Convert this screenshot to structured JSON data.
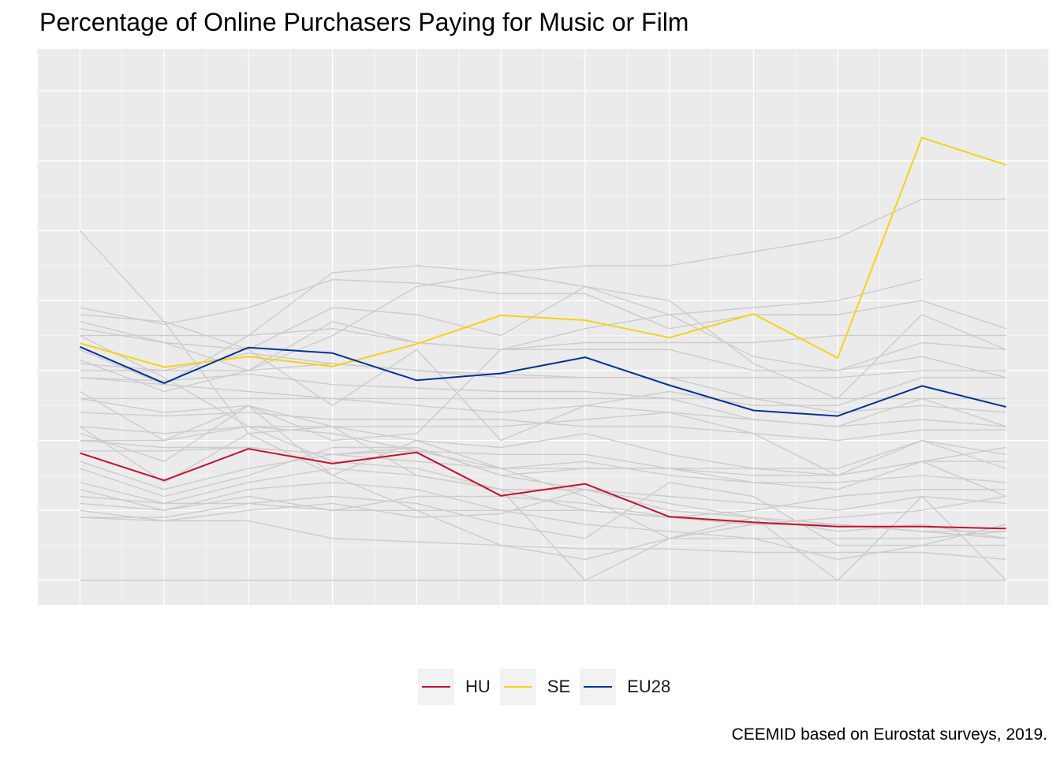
{
  "chart_data": {
    "type": "line",
    "title": "Percentage of Online Purchasers Paying for Music or Film",
    "caption": "CEEMID based on Eurostat surveys, 2019.",
    "x": [
      1,
      2,
      3,
      4,
      5,
      6,
      7,
      8,
      9,
      10,
      11,
      12
    ],
    "ylim": [
      -0.35,
      7.6
    ],
    "grid": true,
    "legend_position": "bottom",
    "highlight_series": [
      {
        "name": "HU",
        "color": "#c8102e",
        "values": [
          1.82,
          1.43,
          1.88,
          1.67,
          1.83,
          1.21,
          1.38,
          0.91,
          0.83,
          0.77,
          0.77,
          0.74
        ]
      },
      {
        "name": "SE",
        "color": "#f7d117",
        "values": [
          3.39,
          3.05,
          3.2,
          3.06,
          3.38,
          3.79,
          3.72,
          3.47,
          3.81,
          3.18,
          6.33,
          5.94
        ]
      },
      {
        "name": "EU28",
        "color": "#003399",
        "values": [
          3.34,
          2.82,
          3.33,
          3.25,
          2.86,
          2.96,
          3.19,
          2.79,
          2.43,
          2.35,
          2.78,
          2.48
        ]
      }
    ],
    "background_series_color": "#cccccc",
    "background_series": [
      [
        5.0,
        3.7,
        2.1,
        1.5,
        1.0,
        0.5,
        0.3,
        0.6,
        0.6,
        0.3,
        0.5,
        0.5
      ],
      [
        3.9,
        3.66,
        3.9,
        4.3,
        4.25,
        4.1,
        4.1,
        3.6,
        3.8,
        3.8,
        4.0,
        3.6
      ],
      [
        3.7,
        3.4,
        3.0,
        3.7,
        3.4,
        3.3,
        3.3,
        3.3,
        3.0,
        3.0,
        3.4,
        3.3
      ],
      [
        3.5,
        3.5,
        3.5,
        3.6,
        3.4,
        3.3,
        3.4,
        3.4,
        3.4,
        3.5,
        3.5,
        3.5
      ],
      [
        3.0,
        3.0,
        3.0,
        3.1,
        3.0,
        2.9,
        2.9,
        2.9,
        2.9,
        2.9,
        3.0,
        3.0
      ],
      [
        2.9,
        2.8,
        2.7,
        2.6,
        2.5,
        2.4,
        2.5,
        2.7,
        2.5,
        2.5,
        2.9,
        2.9
      ],
      [
        2.2,
        2.1,
        2.2,
        2.2,
        2.2,
        2.2,
        2.3,
        2.4,
        2.3,
        2.2,
        2.3,
        2.2
      ],
      [
        2.0,
        1.9,
        1.9,
        1.8,
        1.7,
        1.6,
        1.6,
        1.6,
        1.4,
        1.4,
        1.5,
        1.4
      ],
      [
        1.2,
        1.1,
        1.1,
        1.0,
        1.0,
        1.0,
        0.8,
        0.7,
        0.6,
        0.6,
        0.6,
        0.7
      ],
      [
        0.9,
        0.85,
        0.85,
        0.6,
        0.55,
        0.5,
        0.45,
        0.45,
        0.4,
        0.4,
        0.4,
        0.3
      ],
      [
        0.0,
        0.0,
        0.0,
        0.0,
        0.0,
        0.0,
        0.0,
        0.0,
        0.0,
        0.0,
        0.0,
        0.0
      ],
      [
        1.4,
        1.1,
        1.4,
        1.6,
        1.5,
        1.3,
        1.3,
        1.2,
        1.1,
        1.0,
        1.2,
        1.1
      ],
      [
        3.6,
        3.4,
        3.3,
        2.5,
        3.3,
        2.0,
        2.5,
        2.4,
        2.1,
        1.5,
        2.0,
        1.6
      ],
      [
        2.1,
        1.7,
        2.5,
        1.5,
        2.0,
        1.6,
        1.2,
        0.6,
        0.8,
        0.9,
        1.0,
        1.2
      ],
      [
        2.6,
        2.4,
        2.5,
        2.2,
        2.0,
        1.9,
        2.1,
        1.8,
        1.6,
        1.6,
        2.0,
        1.8
      ],
      [
        1.6,
        1.2,
        1.5,
        1.9,
        1.9,
        1.5,
        1.3,
        1.1,
        0.9,
        0.8,
        0.7,
        0.6
      ],
      [
        3.15,
        2.7,
        3.0,
        3.5,
        4.2,
        4.4,
        4.5,
        4.5,
        4.7,
        4.9,
        5.45,
        5.45
      ],
      [
        3.3,
        2.8,
        3.5,
        4.4,
        4.5,
        4.4,
        4.2,
        4.0,
        3.1,
        2.6,
        3.8,
        3.3
      ],
      [
        1.3,
        1.0,
        1.3,
        1.4,
        1.3,
        1.0,
        1.0,
        0.9,
        1.0,
        1.2,
        1.3,
        1.3
      ],
      [
        2.6,
        2.6,
        2.6,
        2.6,
        2.6,
        2.6,
        2.6,
        2.6,
        2.6,
        2.6,
        2.6,
        2.6
      ],
      [
        1.7,
        1.3,
        1.6,
        1.8,
        1.9,
        1.5,
        1.6,
        1.6,
        1.5,
        1.5,
        1.7,
        1.9
      ],
      [
        2.2,
        1.4,
        2.1,
        2.2,
        1.5,
        1.3,
        0.0,
        0.6,
        0.9,
        0.0,
        1.2,
        0.0
      ],
      [
        3.8,
        3.7,
        3.3,
        3.9,
        3.8,
        3.5,
        4.2,
        3.8,
        3.2,
        3.0,
        3.2,
        2.9
      ],
      [
        2.9,
        2.85,
        2.95,
        2.8,
        2.75,
        2.7,
        2.7,
        2.6,
        2.3,
        2.2,
        2.6,
        2.2
      ],
      [
        1.85,
        1.85,
        1.9,
        1.8,
        1.85,
        1.6,
        1.7,
        1.5,
        1.4,
        1.3,
        1.7,
        1.2
      ],
      [
        1.0,
        0.85,
        1.0,
        1.1,
        0.9,
        0.95,
        1.3,
        1.0,
        0.9,
        0.7,
        0.8,
        0.6
      ],
      [
        2.4,
        2.35,
        2.4,
        2.3,
        2.3,
        2.3,
        2.2,
        2.2,
        2.1,
        2.0,
        2.15,
        2.15
      ],
      [
        0.9,
        0.9,
        1.1,
        1.2,
        1.1,
        0.8,
        0.6,
        1.4,
        1.2,
        0.5,
        0.5,
        0.8
      ],
      [
        3.1,
        3.0,
        3.25,
        3.1,
        3.0,
        2.95,
        2.9,
        2.9,
        2.6,
        2.4,
        2.5,
        2.4
      ],
      [
        2.0,
        2.0,
        2.2,
        2.1,
        1.85,
        1.8,
        1.8,
        1.6,
        1.6,
        1.5,
        1.7,
        1.7
      ],
      [
        1.1,
        1.0,
        1.2,
        1.0,
        1.2,
        1.2,
        1.1,
        0.9,
        0.8,
        0.8,
        0.7,
        0.6
      ],
      [
        3.5,
        2.9,
        2.2,
        1.7,
        1.6,
        1.3,
        1.0,
        0.9,
        0.8,
        0.8,
        0.7,
        0.7
      ],
      [
        2.7,
        2.0,
        2.5,
        2.0,
        2.1,
        3.3,
        3.6,
        3.8,
        3.9,
        4.0,
        4.3,
        null
      ]
    ]
  }
}
